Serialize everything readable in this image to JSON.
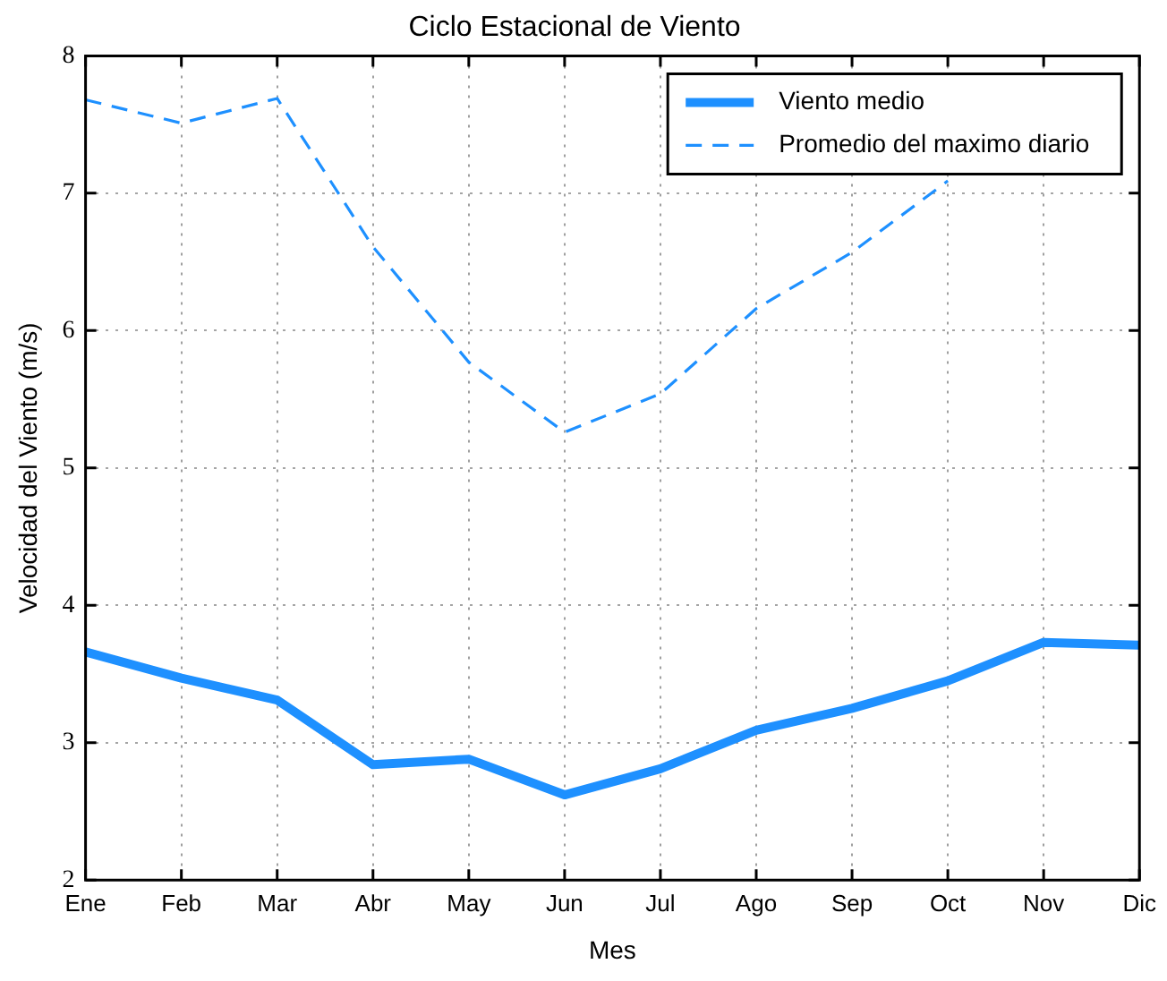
{
  "chart_data": {
    "type": "line",
    "title": "Ciclo Estacional de Viento",
    "xlabel": "Mes",
    "ylabel": "Velocidad del Viento (m/s)",
    "categories": [
      "Ene",
      "Feb",
      "Mar",
      "Abr",
      "May",
      "Jun",
      "Jul",
      "Ago",
      "Sep",
      "Oct",
      "Nov",
      "Dic"
    ],
    "series": [
      {
        "name": "Viento medio",
        "color": "#1e90ff",
        "line_style": "solid",
        "values": [
          3.66,
          3.47,
          3.31,
          2.84,
          2.88,
          2.62,
          2.81,
          3.09,
          3.25,
          3.45,
          3.73,
          3.71
        ]
      },
      {
        "name": "Promedio del maximo diario",
        "color": "#1e90ff",
        "line_style": "dashed",
        "values": [
          7.68,
          7.51,
          7.69,
          6.61,
          5.77,
          5.26,
          5.54,
          6.16,
          6.57,
          7.09,
          null,
          null
        ]
      }
    ],
    "ylim": [
      2,
      8
    ],
    "yticks": [
      2,
      3,
      4,
      5,
      6,
      7,
      8
    ],
    "grid": true,
    "legend": "top right",
    "marker": "none"
  }
}
